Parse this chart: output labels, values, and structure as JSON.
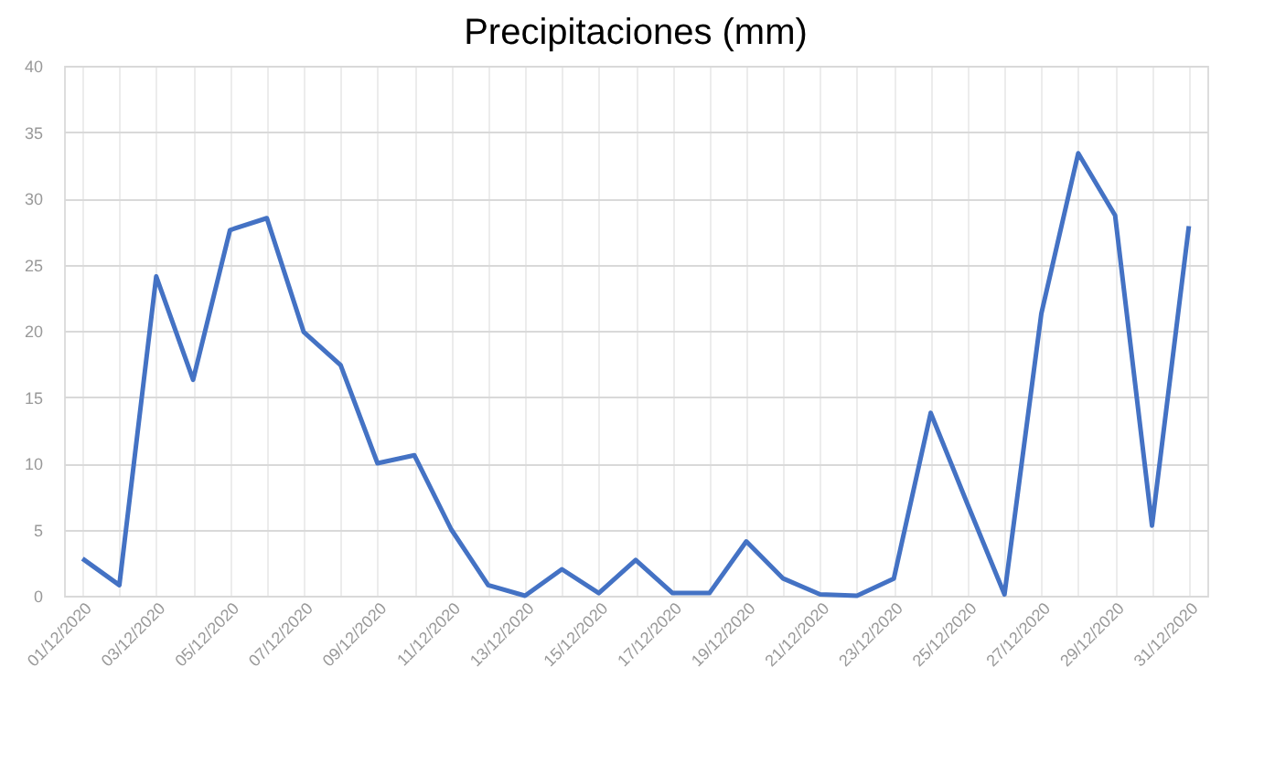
{
  "chart_data": {
    "type": "line",
    "title": "Precipitaciones (mm)",
    "categories": [
      "01/12/2020",
      null,
      "03/12/2020",
      null,
      "05/12/2020",
      null,
      "07/12/2020",
      null,
      "09/12/2020",
      null,
      "11/12/2020",
      null,
      "13/12/2020",
      null,
      "15/12/2020",
      null,
      "17/12/2020",
      null,
      "19/12/2020",
      null,
      "21/12/2020",
      null,
      "23/12/2020",
      null,
      "25/12/2020",
      null,
      "27/12/2020",
      null,
      "29/12/2020",
      null,
      "31/12/2020"
    ],
    "series": [
      {
        "color": "#4472c4",
        "values": [
          2.8,
          0.8,
          24.1,
          16.3,
          27.6,
          28.5,
          19.9,
          17.4,
          10.0,
          10.6,
          5.0,
          0.8,
          0.0,
          2.0,
          0.2,
          2.7,
          0.2,
          0.2,
          4.1,
          1.3,
          0.1,
          0.0,
          1.3,
          13.8,
          6.9,
          0.1,
          21.3,
          33.4,
          28.7,
          5.3,
          27.9
        ]
      }
    ],
    "ylim": [
      0,
      40
    ],
    "yticks": [
      0,
      5,
      10,
      15,
      20,
      25,
      30,
      35,
      40
    ],
    "grid": true,
    "marker": "none",
    "line_style": "solid"
  }
}
